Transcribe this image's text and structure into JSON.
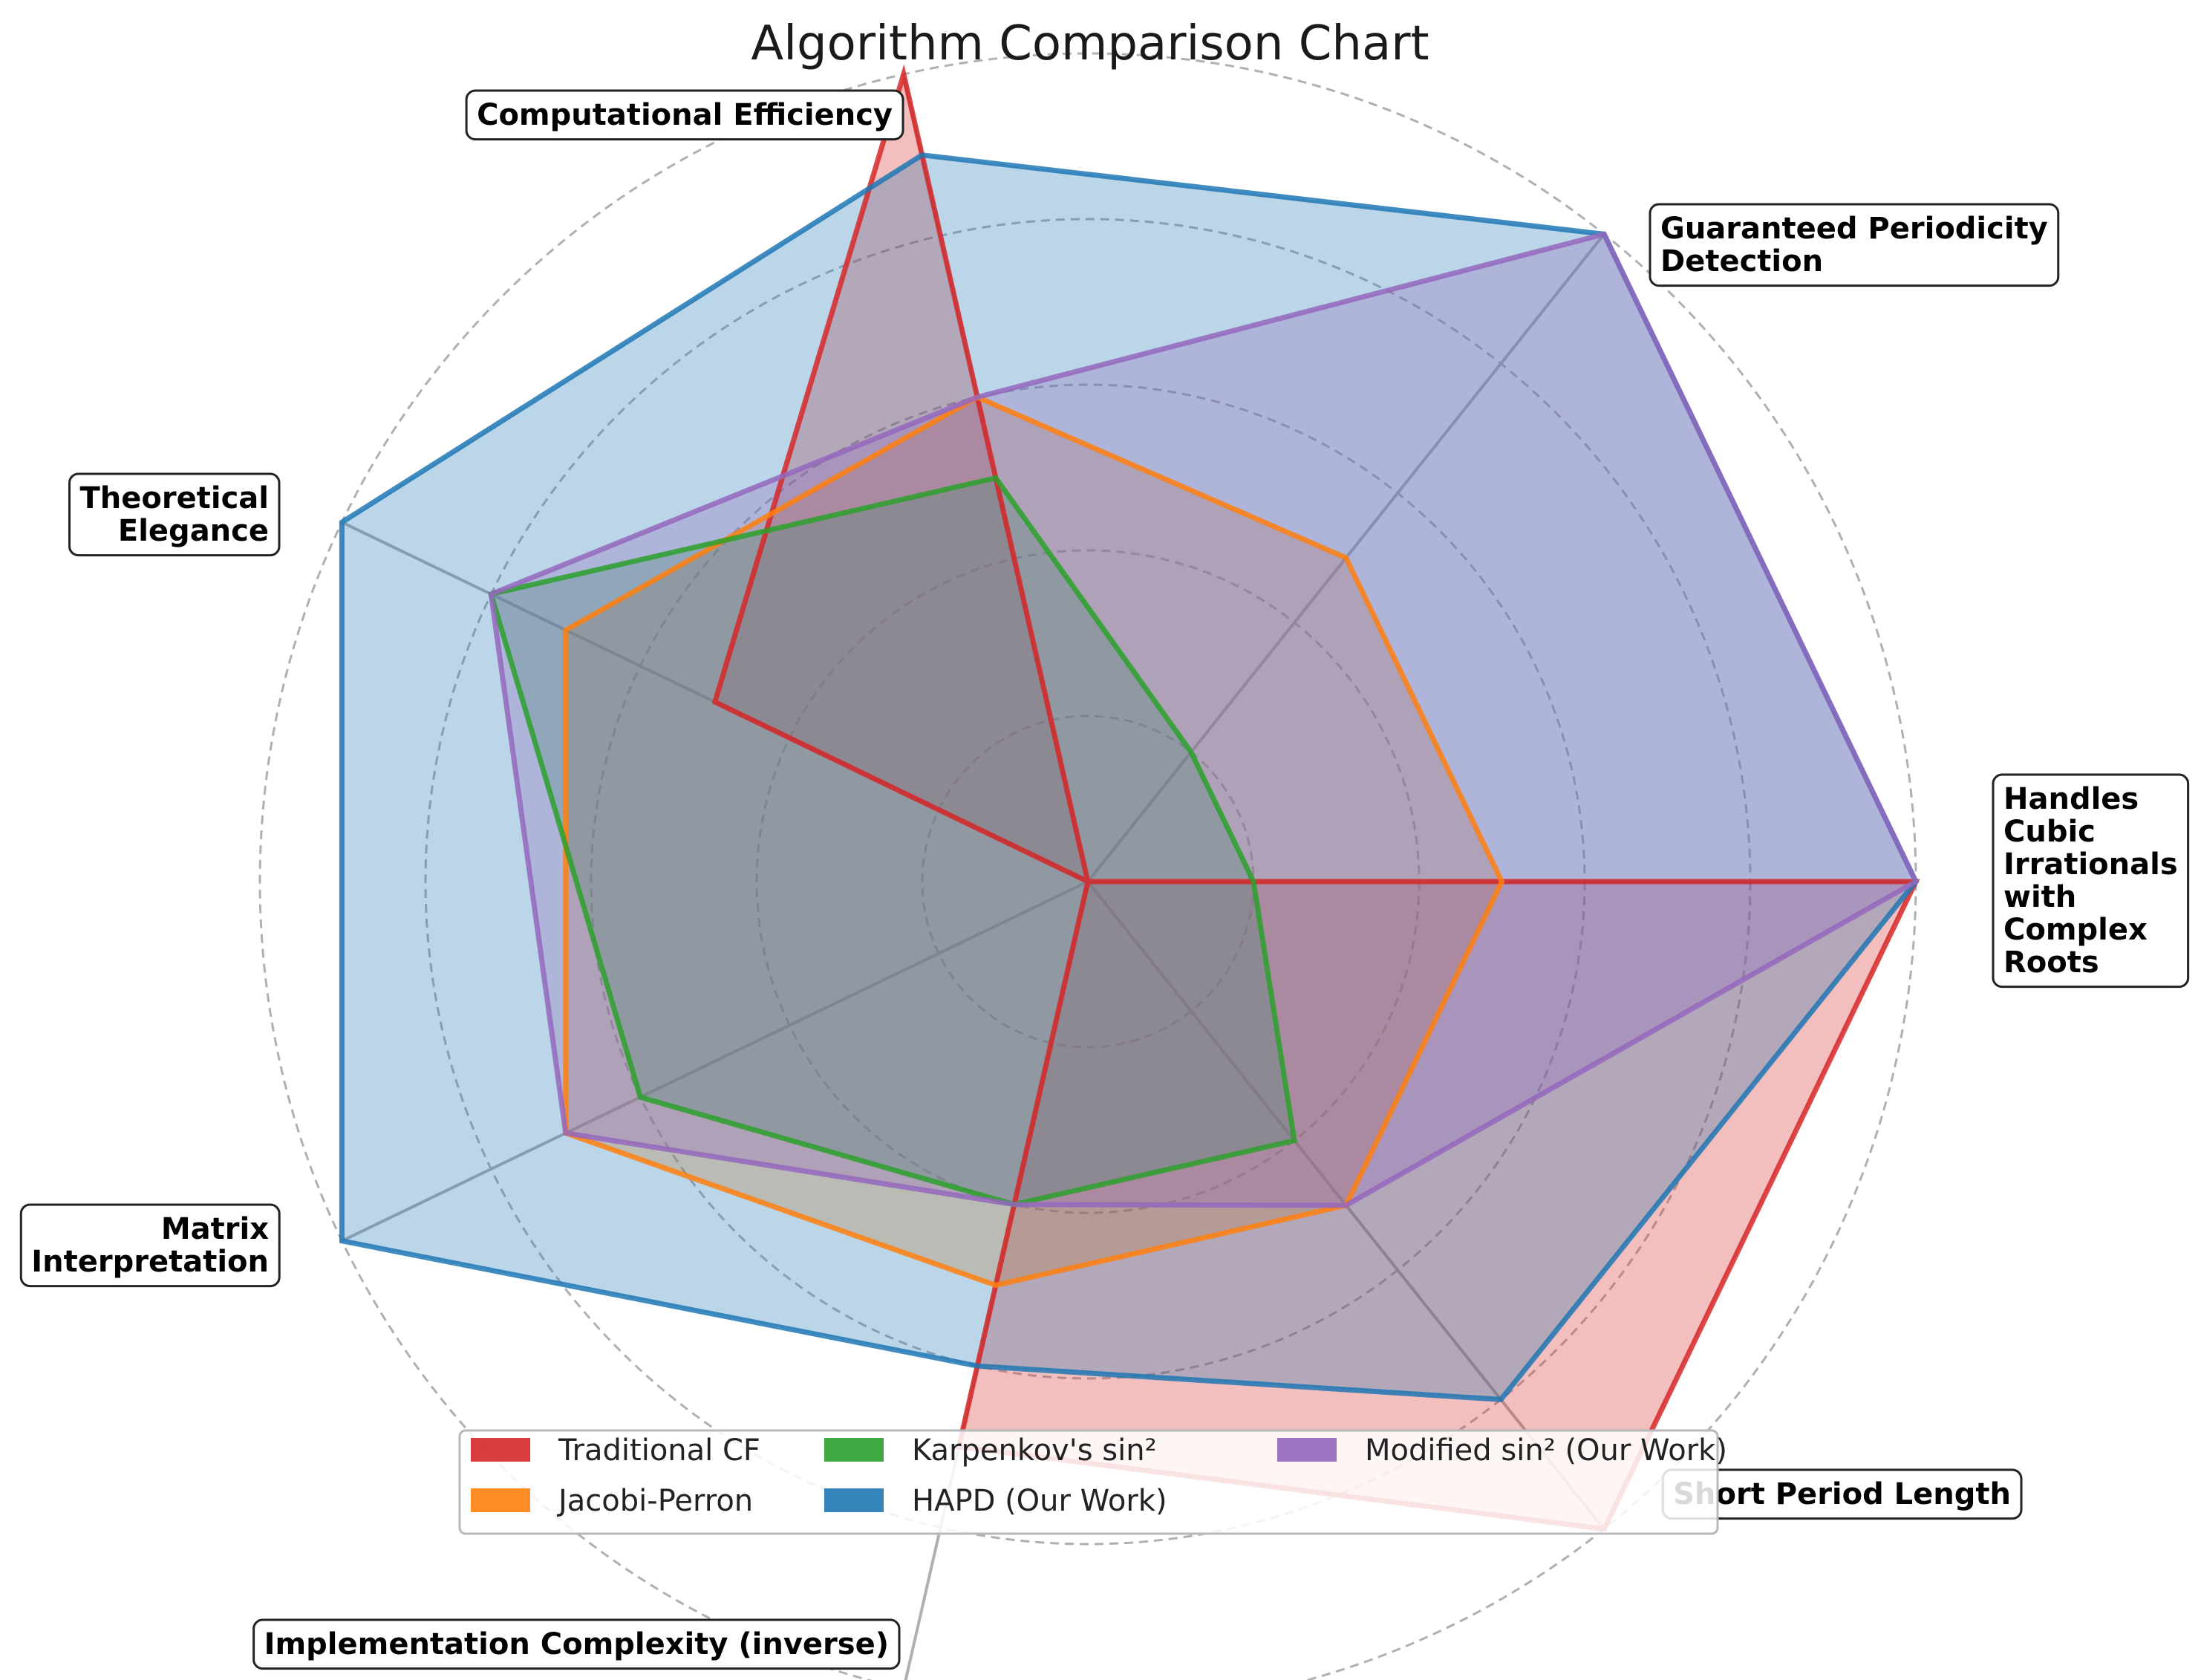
{
  "chart_data": {
    "type": "radar",
    "title": "Algorithm Comparison Chart",
    "axes": [
      "Handles\nCubic\nIrrationals\nwith\nComplex\nRoots",
      "Guaranteed Periodicity\nDetection",
      "Computational Efficiency",
      "Theoretical\nElegance",
      "Matrix\nInterpretation",
      "Implementation Complexity (inverse)",
      "Short Period Length"
    ],
    "rlim": [
      0,
      10
    ],
    "grid": true,
    "legend_placement": "lower-center",
    "series": [
      {
        "name": "Traditional CF",
        "color": "#d62728",
        "values": [
          10,
          0,
          10,
          5,
          0,
          7,
          10
        ]
      },
      {
        "name": "Jacobi-Perron",
        "color": "#ff7f0e",
        "values": [
          5,
          5,
          6,
          7,
          7,
          5,
          5
        ]
      },
      {
        "name": "Karpenkov's sin²",
        "color": "#2ca02c",
        "values": [
          2,
          2,
          5,
          8,
          6,
          4,
          4
        ]
      },
      {
        "name": "HAPD (Our Work)",
        "color": "#1f77b4",
        "values": [
          10,
          10,
          9,
          10,
          10,
          6,
          8
        ]
      },
      {
        "name": "Modified sin² (Our Work)",
        "color": "#9467bd",
        "values": [
          10,
          10,
          6,
          8,
          7,
          4,
          5
        ]
      }
    ]
  }
}
